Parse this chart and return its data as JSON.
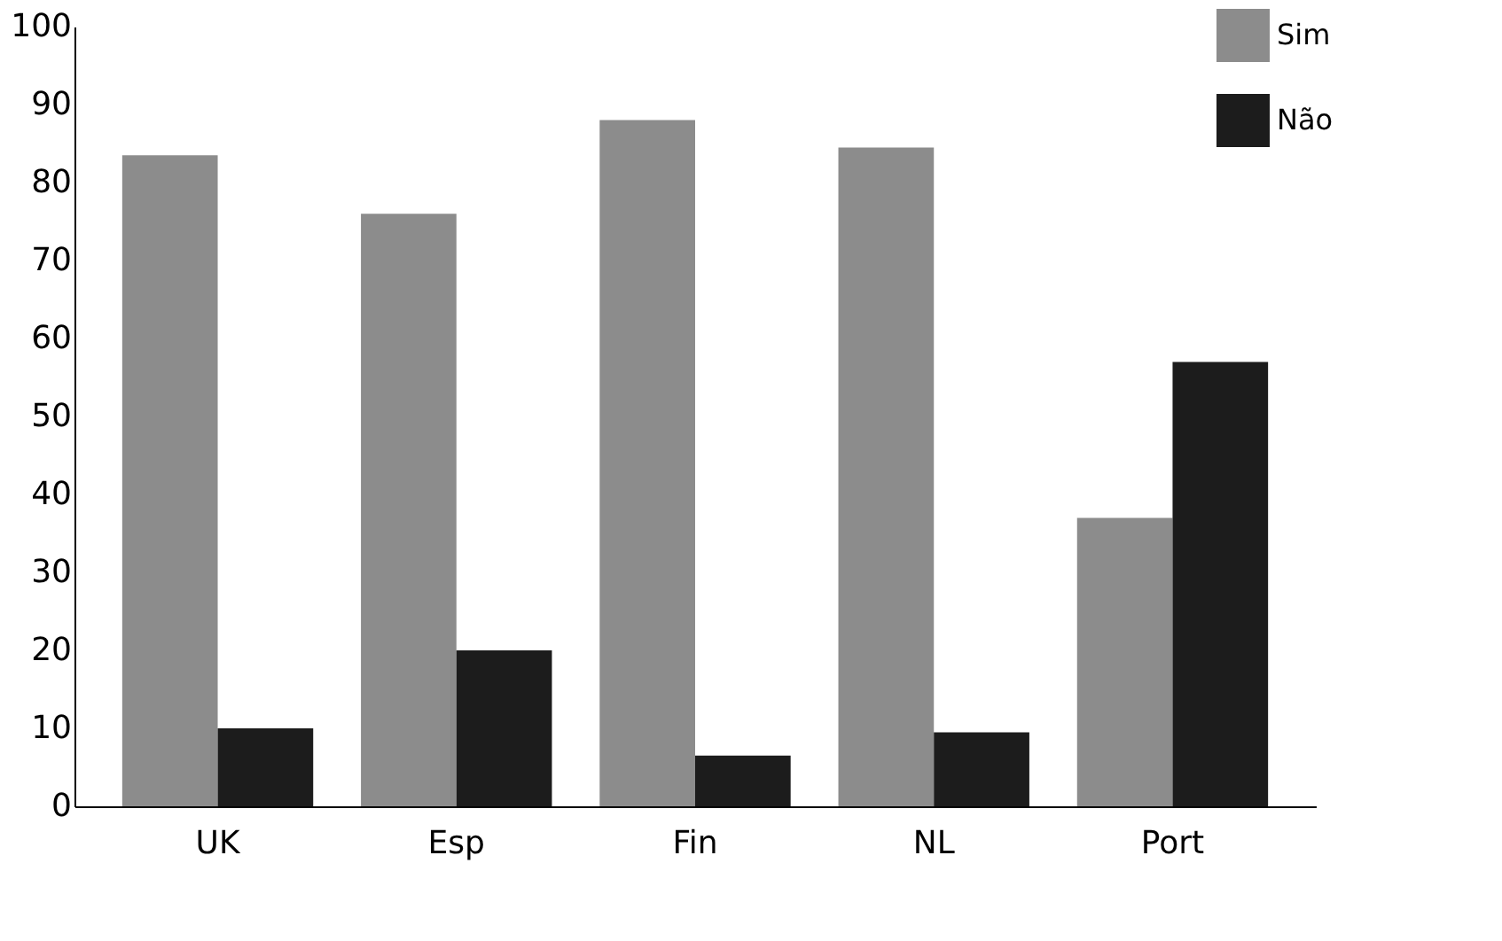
{
  "chart_data": {
    "type": "bar",
    "categories": [
      "UK",
      "Esp",
      "Fin",
      "NL",
      "Port"
    ],
    "series": [
      {
        "name": "Sim",
        "color": "#8c8c8c",
        "values": [
          83.5,
          76,
          88,
          84.5,
          37
        ]
      },
      {
        "name": "Não",
        "color": "#1c1c1c",
        "values": [
          10,
          20,
          6.5,
          9.5,
          57
        ]
      }
    ],
    "ylim": [
      0,
      100
    ],
    "yticks": [
      0,
      10,
      20,
      30,
      40,
      50,
      60,
      70,
      80,
      90,
      100
    ],
    "grid": false,
    "legend": "top right"
  }
}
